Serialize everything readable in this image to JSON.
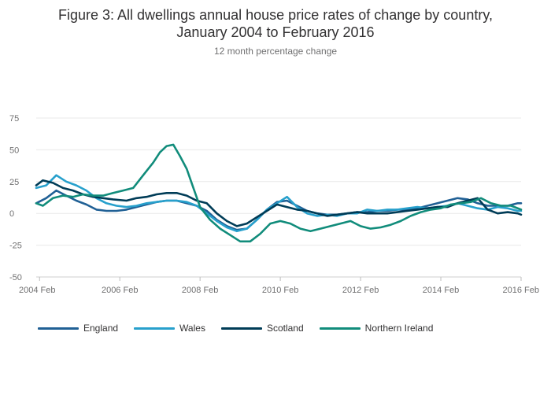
{
  "title_line1": "Figure 3: All dwellings annual house price rates of change by country,",
  "title_line2": "January 2004 to February 2016",
  "subtitle": "12 month percentage change",
  "chart_data": {
    "type": "line",
    "title": "Figure 3: All dwellings annual house price rates of change by country, January 2004 to February 2016",
    "subtitle": "12 month percentage change",
    "xlabel": "",
    "ylabel": "",
    "xlim": [
      "2004-01",
      "2016-02"
    ],
    "ylim": [
      -50,
      75
    ],
    "x_ticks": [
      "2004 Feb",
      "2006 Feb",
      "2008 Feb",
      "2010 Feb",
      "2012 Feb",
      "2014 Feb",
      "2016 Feb"
    ],
    "y_ticks": [
      75,
      50,
      25,
      0,
      -25,
      -50
    ],
    "grid": true,
    "legend_position": "bottom",
    "series": [
      {
        "name": "England",
        "color": "#206095",
        "points": [
          [
            "2004-01",
            8
          ],
          [
            "2004-04",
            12
          ],
          [
            "2004-07",
            18
          ],
          [
            "2004-10",
            14
          ],
          [
            "2005-01",
            10
          ],
          [
            "2005-04",
            7
          ],
          [
            "2005-07",
            3
          ],
          [
            "2005-10",
            2
          ],
          [
            "2006-01",
            2
          ],
          [
            "2006-04",
            3
          ],
          [
            "2006-07",
            5
          ],
          [
            "2006-10",
            7
          ],
          [
            "2007-01",
            9
          ],
          [
            "2007-04",
            10
          ],
          [
            "2007-07",
            10
          ],
          [
            "2007-10",
            8
          ],
          [
            "2008-01",
            6
          ],
          [
            "2008-04",
            2
          ],
          [
            "2008-07",
            -5
          ],
          [
            "2008-10",
            -10
          ],
          [
            "2009-01",
            -13
          ],
          [
            "2009-04",
            -12
          ],
          [
            "2009-07",
            -5
          ],
          [
            "2009-10",
            3
          ],
          [
            "2010-01",
            9
          ],
          [
            "2010-04",
            10
          ],
          [
            "2010-07",
            6
          ],
          [
            "2010-10",
            2
          ],
          [
            "2011-01",
            0
          ],
          [
            "2011-04",
            -1
          ],
          [
            "2011-07",
            -1
          ],
          [
            "2011-10",
            0
          ],
          [
            "2012-01",
            1
          ],
          [
            "2012-04",
            1
          ],
          [
            "2012-07",
            2
          ],
          [
            "2012-10",
            2
          ],
          [
            "2013-01",
            3
          ],
          [
            "2013-04",
            3
          ],
          [
            "2013-07",
            4
          ],
          [
            "2013-10",
            6
          ],
          [
            "2014-01",
            8
          ],
          [
            "2014-04",
            10
          ],
          [
            "2014-07",
            12
          ],
          [
            "2014-10",
            11
          ],
          [
            "2015-01",
            8
          ],
          [
            "2015-04",
            6
          ],
          [
            "2015-07",
            6
          ],
          [
            "2015-10",
            6
          ],
          [
            "2016-01",
            8
          ],
          [
            "2016-02",
            8
          ]
        ]
      },
      {
        "name": "Wales",
        "color": "#27a0cc",
        "points": [
          [
            "2004-01",
            20
          ],
          [
            "2004-04",
            22
          ],
          [
            "2004-07",
            30
          ],
          [
            "2004-10",
            25
          ],
          [
            "2005-01",
            22
          ],
          [
            "2005-04",
            18
          ],
          [
            "2005-07",
            12
          ],
          [
            "2005-10",
            8
          ],
          [
            "2006-01",
            6
          ],
          [
            "2006-04",
            5
          ],
          [
            "2006-07",
            6
          ],
          [
            "2006-10",
            8
          ],
          [
            "2007-01",
            9
          ],
          [
            "2007-04",
            10
          ],
          [
            "2007-07",
            10
          ],
          [
            "2007-10",
            9
          ],
          [
            "2008-01",
            6
          ],
          [
            "2008-04",
            0
          ],
          [
            "2008-07",
            -6
          ],
          [
            "2008-10",
            -11
          ],
          [
            "2009-01",
            -14
          ],
          [
            "2009-04",
            -12
          ],
          [
            "2009-07",
            -5
          ],
          [
            "2009-10",
            3
          ],
          [
            "2010-01",
            8
          ],
          [
            "2010-04",
            13
          ],
          [
            "2010-07",
            5
          ],
          [
            "2010-10",
            0
          ],
          [
            "2011-01",
            -2
          ],
          [
            "2011-04",
            -1
          ],
          [
            "2011-07",
            -2
          ],
          [
            "2011-10",
            0
          ],
          [
            "2012-01",
            0
          ],
          [
            "2012-04",
            3
          ],
          [
            "2012-07",
            2
          ],
          [
            "2012-10",
            3
          ],
          [
            "2013-01",
            3
          ],
          [
            "2013-04",
            4
          ],
          [
            "2013-07",
            5
          ],
          [
            "2013-10",
            4
          ],
          [
            "2014-01",
            5
          ],
          [
            "2014-04",
            6
          ],
          [
            "2014-07",
            8
          ],
          [
            "2014-10",
            6
          ],
          [
            "2015-01",
            4
          ],
          [
            "2015-04",
            3
          ],
          [
            "2015-07",
            5
          ],
          [
            "2015-10",
            4
          ],
          [
            "2016-01",
            2
          ],
          [
            "2016-02",
            2
          ]
        ]
      },
      {
        "name": "Scotland",
        "color": "#003c57",
        "points": [
          [
            "2004-01",
            22
          ],
          [
            "2004-03",
            26
          ],
          [
            "2004-06",
            24
          ],
          [
            "2004-09",
            20
          ],
          [
            "2004-12",
            18
          ],
          [
            "2005-03",
            15
          ],
          [
            "2005-06",
            13
          ],
          [
            "2005-09",
            12
          ],
          [
            "2005-12",
            11
          ],
          [
            "2006-04",
            10
          ],
          [
            "2006-07",
            12
          ],
          [
            "2006-10",
            13
          ],
          [
            "2007-01",
            15
          ],
          [
            "2007-04",
            16
          ],
          [
            "2007-07",
            16
          ],
          [
            "2007-10",
            14
          ],
          [
            "2008-01",
            10
          ],
          [
            "2008-04",
            8
          ],
          [
            "2008-07",
            0
          ],
          [
            "2008-10",
            -6
          ],
          [
            "2009-01",
            -10
          ],
          [
            "2009-04",
            -8
          ],
          [
            "2009-07",
            -3
          ],
          [
            "2009-10",
            2
          ],
          [
            "2010-01",
            7
          ],
          [
            "2010-04",
            5
          ],
          [
            "2010-07",
            3
          ],
          [
            "2010-10",
            2
          ],
          [
            "2011-01",
            0
          ],
          [
            "2011-04",
            -2
          ],
          [
            "2011-07",
            -1
          ],
          [
            "2011-10",
            0
          ],
          [
            "2012-01",
            1
          ],
          [
            "2012-04",
            0
          ],
          [
            "2012-07",
            0
          ],
          [
            "2012-10",
            0
          ],
          [
            "2013-01",
            1
          ],
          [
            "2013-04",
            2
          ],
          [
            "2013-07",
            3
          ],
          [
            "2013-10",
            4
          ],
          [
            "2014-01",
            5
          ],
          [
            "2014-04",
            5
          ],
          [
            "2014-07",
            8
          ],
          [
            "2014-10",
            10
          ],
          [
            "2015-01",
            12
          ],
          [
            "2015-04",
            3
          ],
          [
            "2015-07",
            0
          ],
          [
            "2015-10",
            1
          ],
          [
            "2016-01",
            0
          ],
          [
            "2016-02",
            -1
          ]
        ]
      },
      {
        "name": "Northern Ireland",
        "color": "#118c7b",
        "points": [
          [
            "2004-01",
            8
          ],
          [
            "2004-03",
            6
          ],
          [
            "2004-06",
            12
          ],
          [
            "2004-09",
            14
          ],
          [
            "2004-12",
            13
          ],
          [
            "2005-03",
            15
          ],
          [
            "2005-06",
            14
          ],
          [
            "2005-09",
            14
          ],
          [
            "2005-12",
            16
          ],
          [
            "2006-03",
            18
          ],
          [
            "2006-06",
            20
          ],
          [
            "2006-09",
            30
          ],
          [
            "2006-12",
            40
          ],
          [
            "2007-02",
            48
          ],
          [
            "2007-04",
            53
          ],
          [
            "2007-06",
            54
          ],
          [
            "2007-08",
            45
          ],
          [
            "2007-10",
            35
          ],
          [
            "2007-12",
            20
          ],
          [
            "2008-02",
            5
          ],
          [
            "2008-05",
            -5
          ],
          [
            "2008-08",
            -12
          ],
          [
            "2008-11",
            -17
          ],
          [
            "2009-02",
            -22
          ],
          [
            "2009-05",
            -22
          ],
          [
            "2009-08",
            -16
          ],
          [
            "2009-11",
            -8
          ],
          [
            "2010-02",
            -6
          ],
          [
            "2010-05",
            -8
          ],
          [
            "2010-08",
            -12
          ],
          [
            "2010-11",
            -14
          ],
          [
            "2011-02",
            -12
          ],
          [
            "2011-05",
            -10
          ],
          [
            "2011-08",
            -8
          ],
          [
            "2011-11",
            -6
          ],
          [
            "2012-02",
            -10
          ],
          [
            "2012-05",
            -12
          ],
          [
            "2012-08",
            -11
          ],
          [
            "2012-11",
            -9
          ],
          [
            "2013-02",
            -6
          ],
          [
            "2013-05",
            -2
          ],
          [
            "2013-08",
            1
          ],
          [
            "2013-11",
            3
          ],
          [
            "2014-02",
            4
          ],
          [
            "2014-05",
            7
          ],
          [
            "2014-08",
            8
          ],
          [
            "2014-11",
            9
          ],
          [
            "2015-02",
            12
          ],
          [
            "2015-05",
            8
          ],
          [
            "2015-08",
            6
          ],
          [
            "2015-11",
            6
          ],
          [
            "2016-02",
            3
          ]
        ]
      }
    ]
  }
}
